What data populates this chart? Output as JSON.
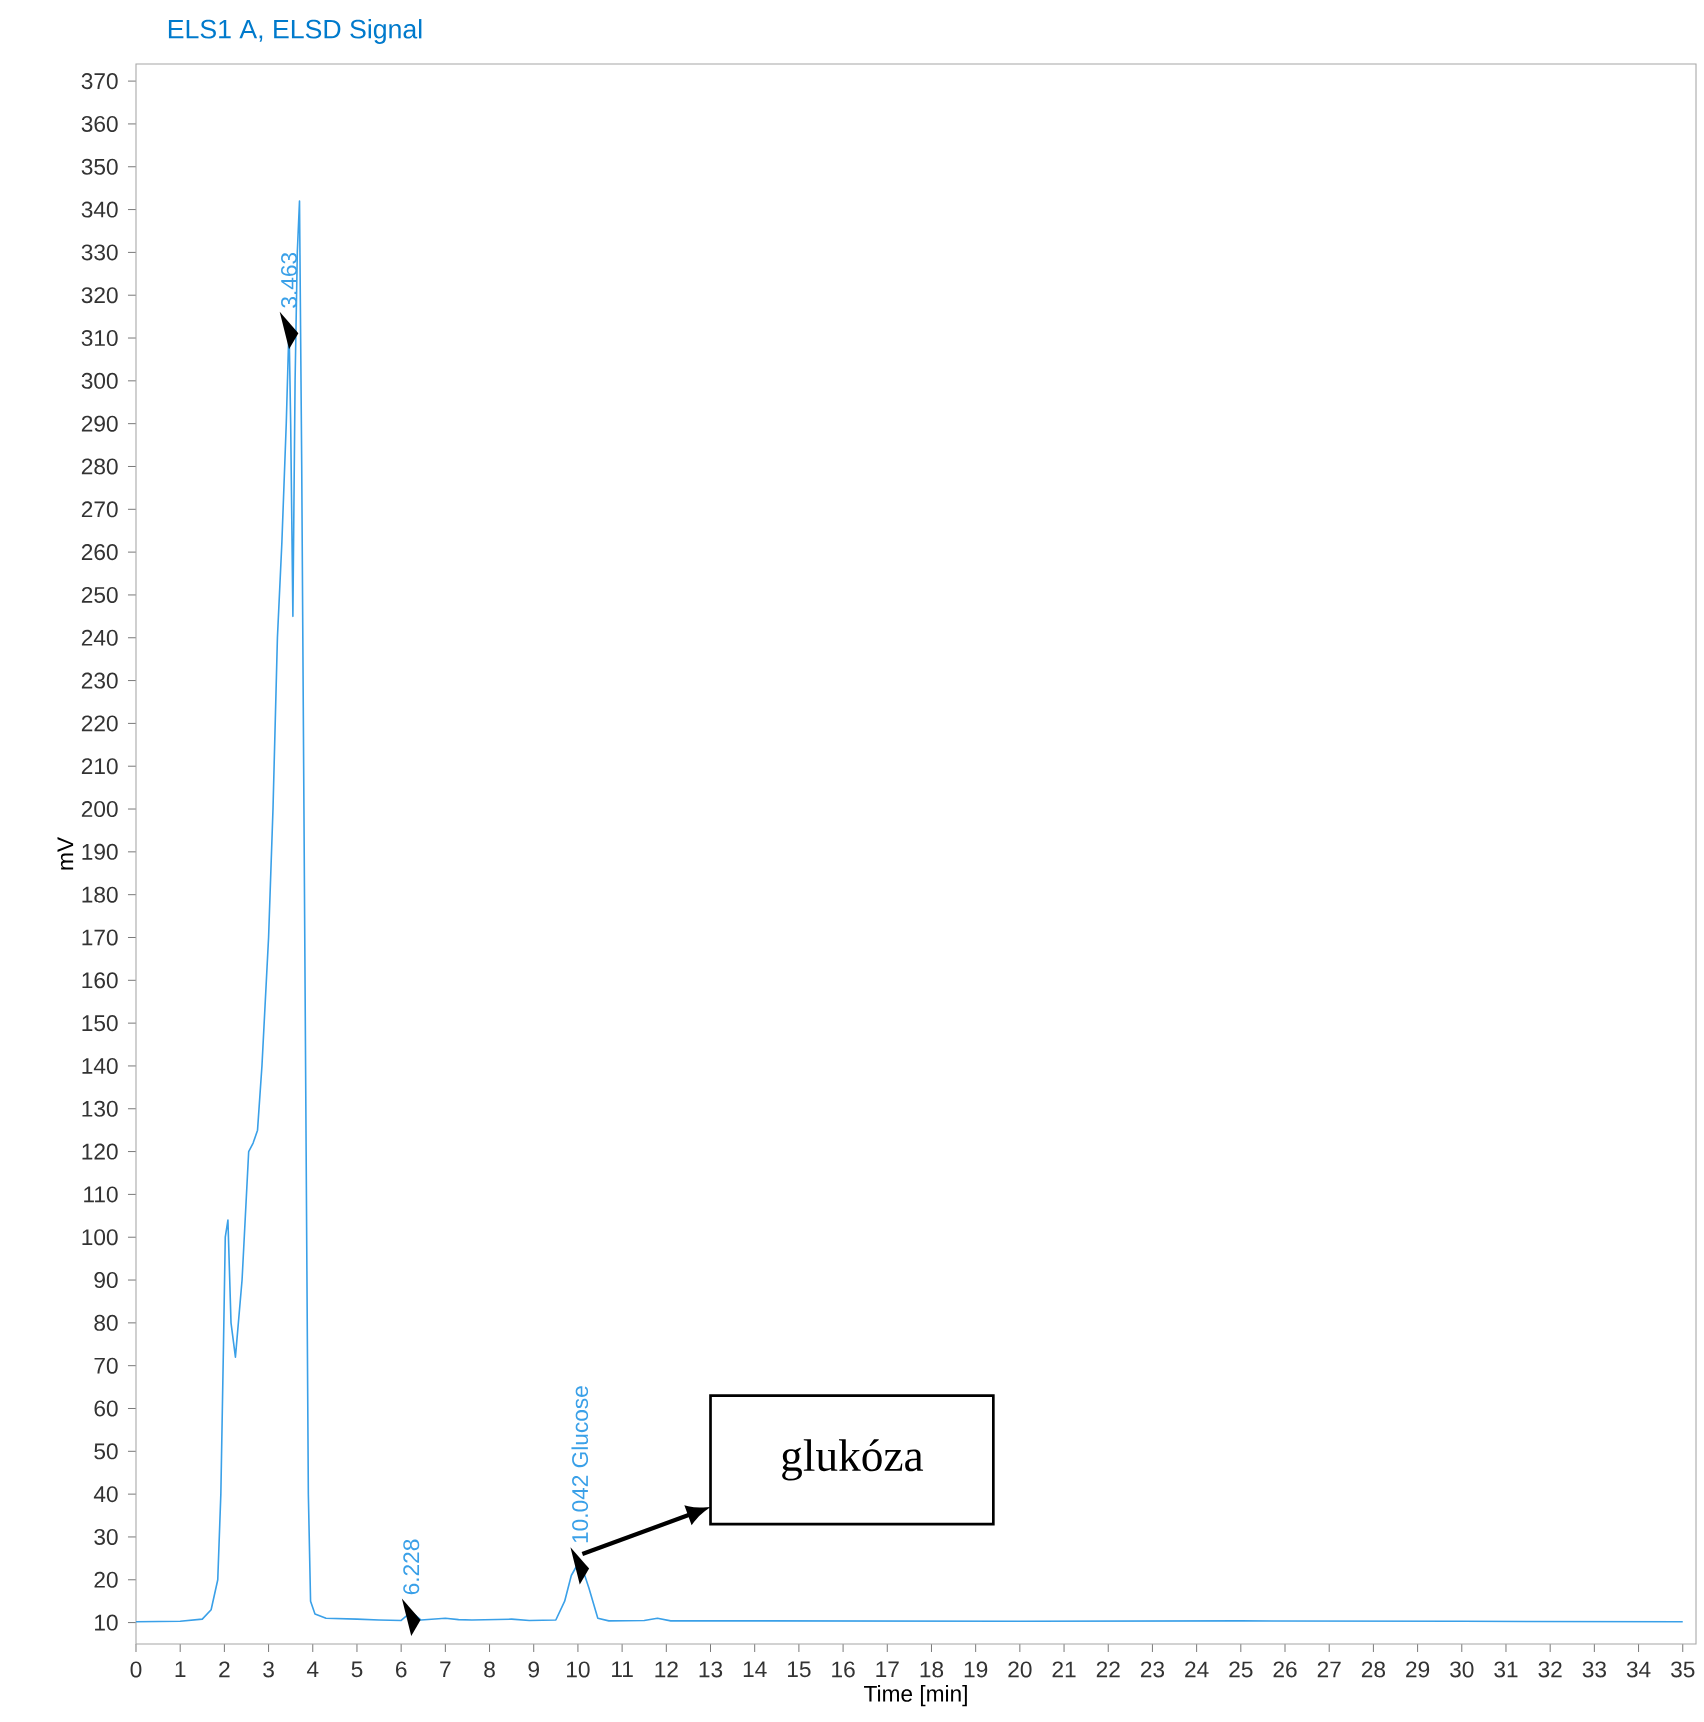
{
  "chart_data": {
    "type": "line",
    "title": "ELS1 A, ELSD Signal",
    "xlabel": "Time [min]",
    "ylabel": "mV",
    "xlim": [
      0,
      35.3
    ],
    "ylim": [
      5,
      374
    ],
    "xticks": [
      0,
      1,
      2,
      3,
      4,
      5,
      6,
      7,
      8,
      9,
      10,
      11,
      12,
      13,
      14,
      15,
      16,
      17,
      18,
      19,
      20,
      21,
      22,
      23,
      24,
      25,
      26,
      27,
      28,
      29,
      30,
      31,
      32,
      33,
      34,
      35
    ],
    "yticks": [
      10,
      20,
      30,
      40,
      50,
      60,
      70,
      80,
      90,
      100,
      110,
      120,
      130,
      140,
      150,
      160,
      170,
      180,
      190,
      200,
      210,
      220,
      230,
      240,
      250,
      260,
      270,
      280,
      290,
      300,
      310,
      320,
      330,
      340,
      350,
      360,
      370
    ],
    "series": [
      {
        "color": "#3aa0e8",
        "x": [
          0,
          1.0,
          1.5,
          1.7,
          1.85,
          1.92,
          1.98,
          2.02,
          2.08,
          2.15,
          2.25,
          2.4,
          2.55,
          2.65,
          2.75,
          2.85,
          3.0,
          3.1,
          3.2,
          3.3,
          3.4,
          3.463,
          3.5,
          3.55,
          3.6,
          3.65,
          3.7,
          3.75,
          3.8,
          3.85,
          3.9,
          3.95,
          4.05,
          4.3,
          5.0,
          5.5,
          6.0,
          6.228,
          6.45,
          7.0,
          7.3,
          7.6,
          8.5,
          8.9,
          9.5,
          9.7,
          9.85,
          10.042,
          10.25,
          10.45,
          10.7,
          11.5,
          11.8,
          12.1,
          14,
          20,
          25,
          30,
          35
        ],
        "values": [
          10.2,
          10.3,
          10.8,
          13,
          20,
          40,
          75,
          100,
          104,
          80,
          72,
          90,
          120,
          122,
          125,
          140,
          170,
          200,
          240,
          262,
          290,
          313,
          290,
          245,
          300,
          330,
          342,
          280,
          200,
          120,
          40,
          15,
          12,
          11,
          10.8,
          10.6,
          10.5,
          12.5,
          10.6,
          11,
          10.7,
          10.6,
          10.8,
          10.5,
          10.6,
          15,
          21,
          24.5,
          18,
          11,
          10.4,
          10.5,
          11,
          10.4,
          10.4,
          10.3,
          10.4,
          10.3,
          10.2
        ]
      }
    ],
    "annotations": [
      {
        "text": "3.463",
        "x": 3.463,
        "y": 313
      },
      {
        "text": "6.228",
        "x": 6.228,
        "y": 12.5
      },
      {
        "text": "10.042 Glucose",
        "x": 10.042,
        "y": 24.5
      },
      "glukóza"
    ],
    "marker": "none",
    "line_style": "solid"
  }
}
